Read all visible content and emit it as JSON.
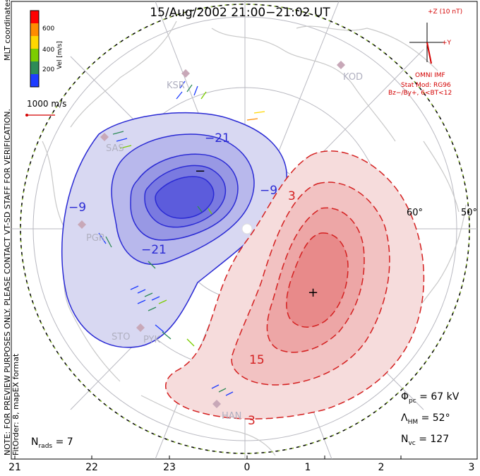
{
  "title": "15/Aug/2002 21:00−21:02 UT",
  "side_note": "NOTE: FOR PREVIEW PURPOSES ONLY. PLEASE CONTACT VT-SD STAFF FOR VERIFICATION.",
  "side_fit": "FitOrder: 8, mapEX format",
  "coord_label": "MLT coordinates",
  "velocity_scale": {
    "label": "Vel [m/s]",
    "ticks": [
      "600",
      "400",
      "200"
    ],
    "colors": [
      "#ff0000",
      "#ff8c00",
      "#ffd700",
      "#7ccd00",
      "#2e8b57",
      "#1e3cff"
    ]
  },
  "ref_vector": "1000 m/s",
  "imf": {
    "axis_z": "+Z (10 nT)",
    "axis_y": "+Y",
    "omni": "OMNI IMF",
    "model": "Stat Mod: RG96",
    "conditions": "Bz−/By+, 6<BT<12"
  },
  "sites": [
    "KSR",
    "KOD",
    "PGR",
    "SAS",
    "STO",
    "PYK",
    "HAN"
  ],
  "contour_labels": {
    "neg_a": "−21",
    "neg_b": "−9",
    "neg_c": "−9",
    "neg_d": "−21",
    "pos_a": "3",
    "pos_b": "15",
    "pos_c": "3"
  },
  "extrema": {
    "min_marker": "−",
    "max_marker": "+"
  },
  "lat_labels": [
    "60°",
    "50°"
  ],
  "stats": {
    "phi_pc": "= 67 kV",
    "lambda_hm": "= 52°",
    "n_vc": "= 127",
    "n_rads": "= 7"
  },
  "mlt_ticks": [
    "21",
    "22",
    "23",
    "0",
    "1",
    "2",
    "3"
  ],
  "colors": {
    "negative_cell": "#2a2ad4",
    "positive_cell": "#d42020",
    "coastline": "#c8c8c8",
    "imf_text": "#d40000"
  }
}
